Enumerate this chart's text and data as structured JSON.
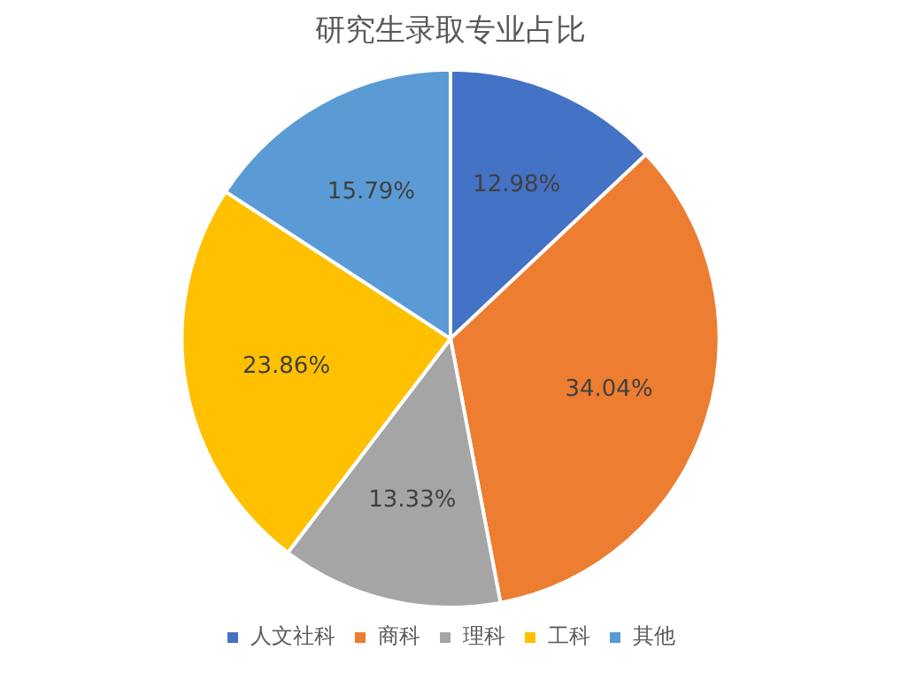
{
  "chart_data": {
    "type": "pie",
    "title": "研究生录取专业占比",
    "categories": [
      "人文社科",
      "商科",
      "理科",
      "工科",
      "其他"
    ],
    "values": [
      12.98,
      34.04,
      13.33,
      23.86,
      15.79
    ],
    "colors": [
      "#4472c4",
      "#ed7d31",
      "#a5a5a5",
      "#ffc000",
      "#5b9bd5"
    ],
    "value_labels": [
      "12.98%",
      "34.04%",
      "13.33%",
      "23.86%",
      "15.79%"
    ],
    "legend": "bottom"
  }
}
